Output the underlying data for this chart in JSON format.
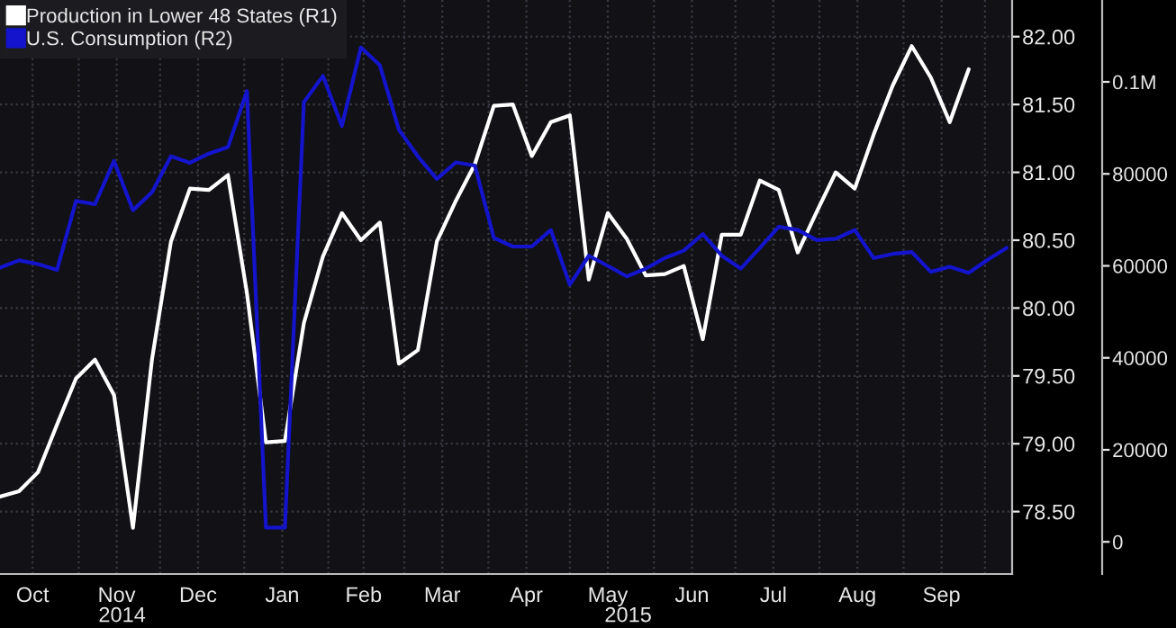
{
  "chart_data": {
    "type": "line",
    "x": [
      "2014-10-03",
      "2014-10-10",
      "2014-10-17",
      "2014-10-24",
      "2014-10-31",
      "2014-11-07",
      "2014-11-14",
      "2014-11-21",
      "2014-11-28",
      "2014-12-05",
      "2014-12-12",
      "2014-12-19",
      "2014-12-26",
      "2015-01-02",
      "2015-01-09",
      "2015-01-16",
      "2015-01-23",
      "2015-01-30",
      "2015-02-06",
      "2015-02-13",
      "2015-02-20",
      "2015-02-27",
      "2015-03-06",
      "2015-03-13",
      "2015-03-20",
      "2015-03-27",
      "2015-04-03",
      "2015-04-10",
      "2015-04-17",
      "2015-04-24",
      "2015-05-01",
      "2015-05-08",
      "2015-05-15",
      "2015-05-22",
      "2015-05-29",
      "2015-06-05",
      "2015-06-12",
      "2015-06-19",
      "2015-06-26",
      "2015-07-03",
      "2015-07-10",
      "2015-07-17",
      "2015-07-24",
      "2015-07-31",
      "2015-08-07",
      "2015-08-14",
      "2015-08-21",
      "2015-08-28",
      "2015-09-04",
      "2015-09-11",
      "2015-09-18",
      "2015-09-25",
      "2015-10-02",
      "2015-10-09"
    ],
    "series": [
      {
        "name": "Production in Lower 48 States (R1)",
        "color": "#ffffff",
        "values": [
          78.61,
          78.65,
          78.79,
          79.14,
          79.48,
          79.62,
          79.36,
          78.38,
          79.62,
          80.49,
          80.88,
          80.87,
          80.98,
          80.11,
          79.01,
          79.02,
          79.89,
          80.38,
          80.7,
          80.5,
          80.63,
          79.59,
          79.69,
          80.49,
          80.79,
          81.06,
          81.49,
          81.5,
          81.12,
          81.37,
          81.42,
          80.21,
          80.7,
          80.51,
          80.24,
          80.25,
          80.31,
          79.77,
          80.54,
          80.54,
          80.94,
          80.87,
          80.41,
          80.71,
          81.0,
          80.88,
          81.28,
          81.64,
          81.93,
          81.7,
          81.37,
          81.76,
          null,
          null
        ]
      },
      {
        "name": "U.S. Consumption (R2)",
        "color": "#1414cc",
        "axis": "y2",
        "values": [
          59600,
          61200,
          60400,
          59100,
          74100,
          73400,
          82800,
          72100,
          76000,
          83800,
          82400,
          84400,
          85800,
          98000,
          3100,
          3100,
          95600,
          101300,
          90400,
          107500,
          103600,
          89600,
          83800,
          78900,
          82500,
          81800,
          66100,
          64200,
          64200,
          67800,
          55900,
          62200,
          60000,
          57700,
          59400,
          61700,
          63300,
          66900,
          62200,
          59400,
          63900,
          68500,
          67800,
          65600,
          65900,
          67800,
          61700,
          62600,
          63000,
          58700,
          59800,
          58500,
          61300,
          63900
        ]
      }
    ],
    "xlim": [
      "2014-10-03",
      "2015-10-11"
    ],
    "xticks": [
      {
        "value": "2014-10-15",
        "label": "Oct"
      },
      {
        "value": "2014-11-01",
        "label": null
      },
      {
        "value": "2014-11-15",
        "label": "Nov"
      },
      {
        "value": "2014-12-01",
        "label": null
      },
      {
        "value": "2014-12-15",
        "label": "Dec"
      },
      {
        "value": "2015-01-01",
        "label": null
      },
      {
        "value": "2015-01-15",
        "label": "Jan"
      },
      {
        "value": "2015-02-01",
        "label": null
      },
      {
        "value": "2015-02-14",
        "label": "Feb"
      },
      {
        "value": "2015-03-01",
        "label": null
      },
      {
        "value": "2015-03-15",
        "label": "Mar"
      },
      {
        "value": "2015-04-01",
        "label": null
      },
      {
        "value": "2015-04-15",
        "label": "Apr"
      },
      {
        "value": "2015-05-01",
        "label": null
      },
      {
        "value": "2015-05-15",
        "label": "May"
      },
      {
        "value": "2015-06-01",
        "label": null
      },
      {
        "value": "2015-06-15",
        "label": "Jun"
      },
      {
        "value": "2015-07-01",
        "label": null
      },
      {
        "value": "2015-07-15",
        "label": "Jul"
      },
      {
        "value": "2015-08-01",
        "label": null
      },
      {
        "value": "2015-08-15",
        "label": "Aug"
      },
      {
        "value": "2015-09-01",
        "label": null
      },
      {
        "value": "2015-09-15",
        "label": "Sep"
      },
      {
        "value": "2015-10-01",
        "label": null
      }
    ],
    "ylim": [
      78.04,
      82.27
    ],
    "yticks": [
      {
        "value": 78.5,
        "label": "78.50"
      },
      {
        "value": 79,
        "label": "79.00"
      },
      {
        "value": 79.5,
        "label": "79.50"
      },
      {
        "value": 80,
        "label": "80.00"
      },
      {
        "value": 80.5,
        "label": "80.50"
      },
      {
        "value": 81,
        "label": "81.00"
      },
      {
        "value": 81.5,
        "label": "81.50"
      },
      {
        "value": 82,
        "label": "82.00"
      }
    ],
    "y2lim": [
      -7000,
      117800
    ],
    "y2ticks": [
      0,
      20000,
      40000,
      60000,
      80000,
      {
        "value": 100000,
        "label": "0.1M"
      }
    ],
    "annotations": [
      "2014",
      "2015"
    ],
    "grid": true,
    "legend": "top left",
    "marker": "none",
    "line_style": "solid"
  }
}
